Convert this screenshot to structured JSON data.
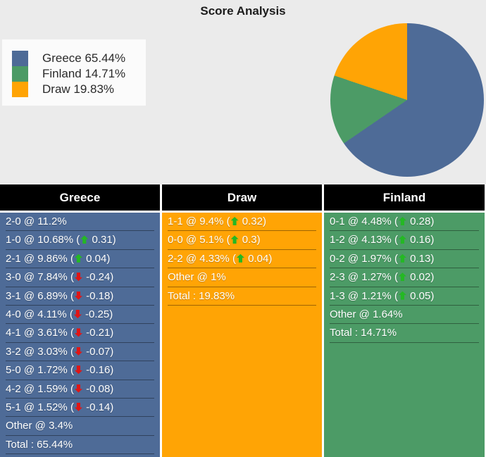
{
  "title": "Score Analysis",
  "colors": {
    "page_bg": "#ebebeb",
    "legend_bg": "#fbfbfb",
    "header_bg": "#000000",
    "header_text": "#ffffff",
    "greece_blue": "#4e6b97",
    "finland_green": "#4c9b66",
    "draw_orange": "#ffa405",
    "up_arrow": "#24b824",
    "down_arrow": "#e01515"
  },
  "chart_data": [
    {
      "type": "pie",
      "title": "Score Analysis",
      "labels": [
        "Greece",
        "Finland",
        "Draw"
      ],
      "values": [
        65.44,
        14.71,
        19.83
      ],
      "colors": [
        "#4e6b97",
        "#4c9b66",
        "#ffa405"
      ],
      "legend_labels": [
        "Greece 65.44%",
        "Finland 14.71%",
        "Draw 19.83%"
      ],
      "legend_position": "left",
      "start_angle_deg": 0,
      "direction": "clockwise"
    },
    {
      "type": "table",
      "header": "Greece",
      "bg": "#4e6b97",
      "rows": [
        {
          "text": "2-0 @ 11.2%"
        },
        {
          "text": "1-0 @ 10.68%",
          "delta": "0.31",
          "dir": "up"
        },
        {
          "text": "2-1 @ 9.86%",
          "delta": "0.04",
          "dir": "up"
        },
        {
          "text": "3-0 @ 7.84%",
          "delta": "-0.24",
          "dir": "down"
        },
        {
          "text": "3-1 @ 6.89%",
          "delta": "-0.18",
          "dir": "down"
        },
        {
          "text": "4-0 @ 4.11%",
          "delta": "-0.25",
          "dir": "down"
        },
        {
          "text": "4-1 @ 3.61%",
          "delta": "-0.21",
          "dir": "down"
        },
        {
          "text": "3-2 @ 3.03%",
          "delta": "-0.07",
          "dir": "down"
        },
        {
          "text": "5-0 @ 1.72%",
          "delta": "-0.16",
          "dir": "down"
        },
        {
          "text": "4-2 @ 1.59%",
          "delta": "-0.08",
          "dir": "down"
        },
        {
          "text": "5-1 @ 1.52%",
          "delta": "-0.14",
          "dir": "down"
        },
        {
          "text": "Other @ 3.4%"
        },
        {
          "text": "Total : 65.44%"
        }
      ]
    },
    {
      "type": "table",
      "header": "Draw",
      "bg": "#ffa405",
      "rows": [
        {
          "text": "1-1 @ 9.4%",
          "delta": "0.32",
          "dir": "up"
        },
        {
          "text": "0-0 @ 5.1%",
          "delta": "0.3",
          "dir": "up"
        },
        {
          "text": "2-2 @ 4.33%",
          "delta": "0.04",
          "dir": "up"
        },
        {
          "text": "Other @ 1%"
        },
        {
          "text": "Total : 19.83%"
        }
      ]
    },
    {
      "type": "table",
      "header": "Finland",
      "bg": "#4c9b66",
      "rows": [
        {
          "text": "0-1 @ 4.48%",
          "delta": "0.28",
          "dir": "up"
        },
        {
          "text": "1-2 @ 4.13%",
          "delta": "0.16",
          "dir": "up"
        },
        {
          "text": "0-2 @ 1.97%",
          "delta": "0.13",
          "dir": "up"
        },
        {
          "text": "2-3 @ 1.27%",
          "delta": "0.02",
          "dir": "up"
        },
        {
          "text": "1-3 @ 1.21%",
          "delta": "0.05",
          "dir": "up"
        },
        {
          "text": "Other @ 1.64%"
        },
        {
          "text": "Total : 14.71%"
        }
      ]
    }
  ]
}
